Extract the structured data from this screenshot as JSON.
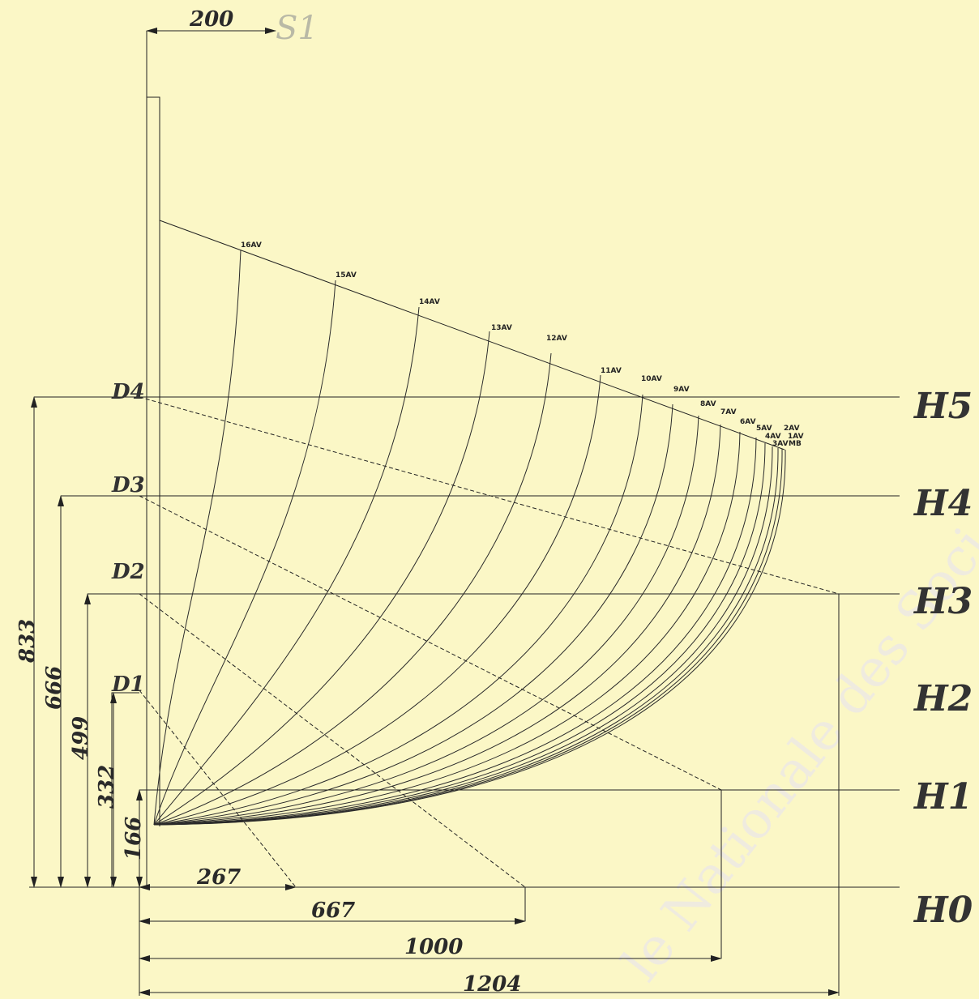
{
  "section_label": "S1",
  "top_dim": "200",
  "horiz_dims": [
    "267",
    "667",
    "1000",
    "1204"
  ],
  "vert_dims": [
    "833",
    "666",
    "499",
    "332",
    "166"
  ],
  "waterlines": [
    "H0",
    "H1",
    "H2",
    "H3",
    "H4",
    "H5"
  ],
  "diagonals": [
    "D1",
    "D2",
    "D3",
    "D4"
  ],
  "frames": [
    "16AV",
    "15AV",
    "14AV",
    "13AV",
    "12AV",
    "11AV",
    "10AV",
    "9AV",
    "8AV",
    "7AV",
    "6AV",
    "5AV",
    "4AV",
    "3AV",
    "2AV",
    "1AV",
    "MB"
  ],
  "watermark": "le Nationale des Soci",
  "colors": {
    "background": "#fbf7c6",
    "ink": "#2a2a2a",
    "faded": "#b9b9a6"
  }
}
